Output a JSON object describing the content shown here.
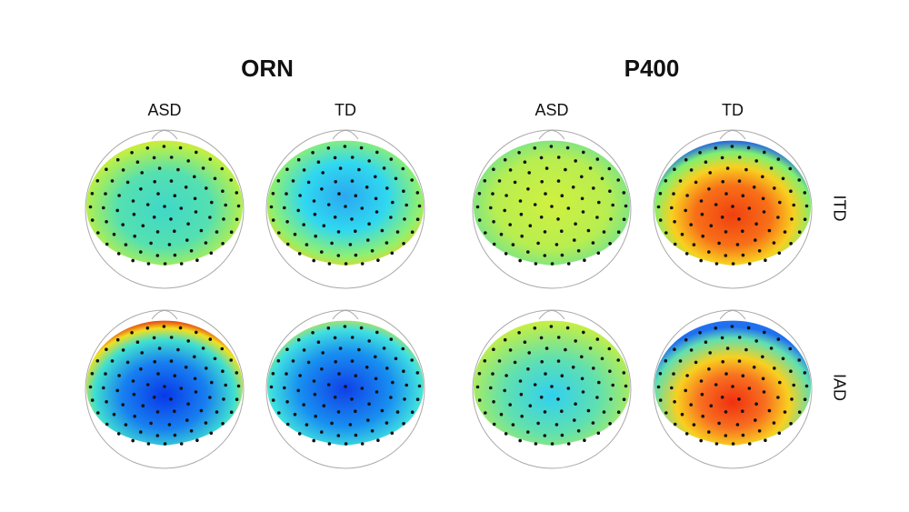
{
  "figure": {
    "groups": [
      {
        "title": "ORN",
        "columns": [
          "ASD",
          "TD"
        ]
      },
      {
        "title": "P400",
        "columns": [
          "ASD",
          "TD"
        ]
      }
    ],
    "rows": [
      "ITD",
      "IAD"
    ]
  }
}
